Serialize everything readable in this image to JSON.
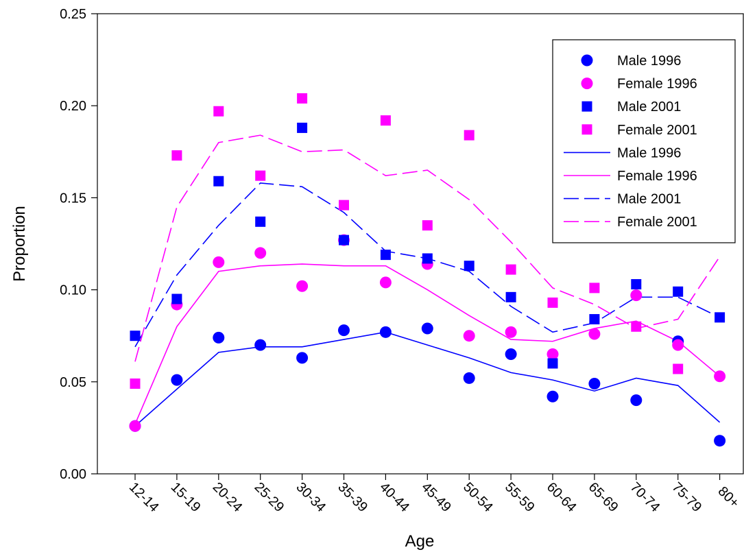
{
  "chart_data": {
    "type": "scatter",
    "title": "",
    "xlabel": "Age",
    "ylabel": "Proportion",
    "ylim": [
      0,
      0.25
    ],
    "yticks": [
      "0.00",
      "0.05",
      "0.10",
      "0.15",
      "0.20",
      "0.25"
    ],
    "ytick_values": [
      0,
      0.05,
      0.1,
      0.15,
      0.2,
      0.25
    ],
    "categories": [
      "12-14",
      "15-19",
      "20-24",
      "25-29",
      "30-34",
      "35-39",
      "40-44",
      "45-49",
      "50-54",
      "55-59",
      "60-64",
      "65-69",
      "70-74",
      "75-79",
      "80+"
    ],
    "legend_position": "top-right",
    "grid": false,
    "series": [
      {
        "name": "Male 1996",
        "kind": "points",
        "marker": "circle",
        "color": "#0000ff",
        "values": [
          0.026,
          0.051,
          0.074,
          0.07,
          0.063,
          0.078,
          0.077,
          0.079,
          0.052,
          0.065,
          0.042,
          0.049,
          0.04,
          0.072,
          0.018
        ]
      },
      {
        "name": "Female 1996",
        "kind": "points",
        "marker": "circle",
        "color": "#ff00ff",
        "values": [
          0.026,
          0.092,
          0.115,
          0.12,
          0.102,
          0.127,
          0.104,
          0.114,
          0.075,
          0.077,
          0.065,
          0.076,
          0.097,
          0.07,
          0.053
        ]
      },
      {
        "name": "Male 2001",
        "kind": "points",
        "marker": "square",
        "color": "#0000ff",
        "values": [
          0.075,
          0.095,
          0.159,
          0.137,
          0.188,
          0.127,
          0.119,
          0.117,
          0.113,
          0.096,
          0.06,
          0.084,
          0.103,
          0.099,
          0.085
        ]
      },
      {
        "name": "Female 2001",
        "kind": "points",
        "marker": "square",
        "color": "#ff00ff",
        "values": [
          0.049,
          0.173,
          0.197,
          0.162,
          0.204,
          0.146,
          0.192,
          0.135,
          0.184,
          0.111,
          0.093,
          0.101,
          0.08,
          0.057,
          null
        ]
      },
      {
        "name": "Male 1996",
        "kind": "line",
        "dash": "solid",
        "color": "#0000ff",
        "values": [
          0.026,
          0.046,
          0.066,
          0.069,
          0.069,
          0.073,
          0.077,
          0.07,
          0.063,
          0.055,
          0.051,
          0.045,
          0.052,
          0.048,
          0.028
        ]
      },
      {
        "name": "Female 1996",
        "kind": "line",
        "dash": "solid",
        "color": "#ff00ff",
        "values": [
          0.027,
          0.08,
          0.11,
          0.113,
          0.114,
          0.113,
          0.113,
          0.1,
          0.086,
          0.073,
          0.072,
          0.079,
          0.083,
          0.072,
          0.053
        ]
      },
      {
        "name": "Male 2001",
        "kind": "line",
        "dash": "dashed",
        "color": "#0000ff",
        "values": [
          0.069,
          0.108,
          0.135,
          0.158,
          0.156,
          0.142,
          0.121,
          0.117,
          0.11,
          0.091,
          0.077,
          0.082,
          0.096,
          0.096,
          0.085
        ]
      },
      {
        "name": "Female 2001",
        "kind": "line",
        "dash": "dashed",
        "color": "#ff00ff",
        "values": [
          0.061,
          0.145,
          0.18,
          0.184,
          0.175,
          0.176,
          0.162,
          0.165,
          0.149,
          0.126,
          0.101,
          0.092,
          0.079,
          0.084,
          0.118
        ]
      }
    ]
  }
}
